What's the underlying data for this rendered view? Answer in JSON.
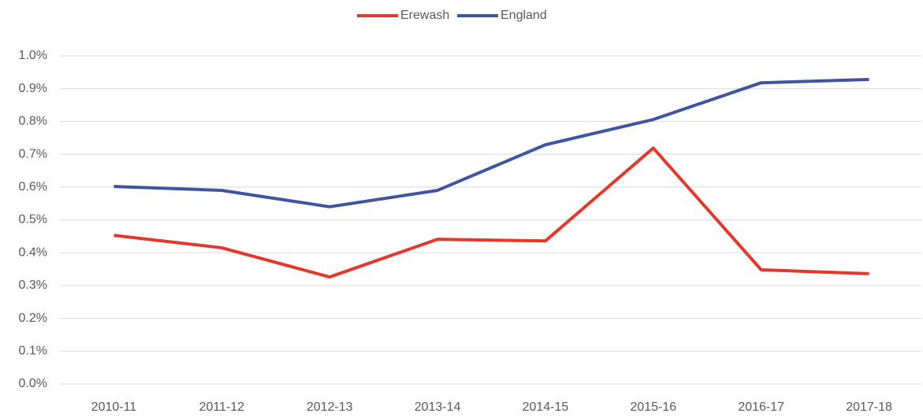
{
  "chart_data": {
    "type": "line",
    "categories": [
      "2010-11",
      "2011-12",
      "2012-13",
      "2013-14",
      "2014-15",
      "2015-16",
      "2016-17",
      "2017-18"
    ],
    "series": [
      {
        "name": "Erewash",
        "color": "#e2382d",
        "values": [
          0.453,
          0.415,
          0.326,
          0.441,
          0.436,
          0.719,
          0.348,
          0.336
        ]
      },
      {
        "name": "England",
        "color": "#4154a0",
        "values": [
          0.602,
          0.59,
          0.54,
          0.59,
          0.729,
          0.806,
          0.918,
          0.928
        ]
      }
    ],
    "ylim": [
      0,
      1.0
    ],
    "yticks": [
      {
        "value": 0,
        "label": "0.0%"
      },
      {
        "value": 0.1,
        "label": "0.1%"
      },
      {
        "value": 0.2,
        "label": "0.2%"
      },
      {
        "value": 0.3,
        "label": "0.3%"
      },
      {
        "value": 0.4,
        "label": "0.4%"
      },
      {
        "value": 0.5,
        "label": "0.5%"
      },
      {
        "value": 0.6,
        "label": "0.6%"
      },
      {
        "value": 0.7,
        "label": "0.7%"
      },
      {
        "value": 0.8,
        "label": "0.8%"
      },
      {
        "value": 0.9,
        "label": "0.9%"
      },
      {
        "value": 1.0,
        "label": "1.0%"
      }
    ],
    "grid": true,
    "legend": "top"
  }
}
